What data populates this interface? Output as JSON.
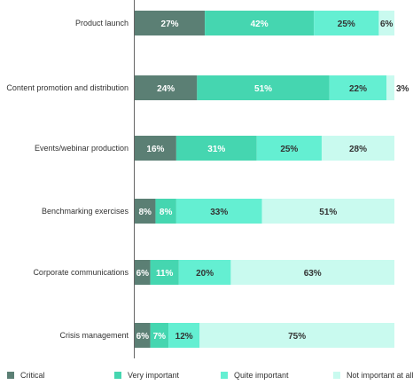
{
  "chart_data": {
    "type": "bar",
    "orientation": "horizontal",
    "stacked": true,
    "categories": [
      "Product launch",
      "Content promotion and distribution",
      "Events/webinar production",
      "Benchmarking exercises",
      "Corporate communications",
      "Crisis management"
    ],
    "series": [
      {
        "name": "Critical",
        "color": "#5b7f74",
        "label_color": "#ffffff",
        "values": [
          27,
          24,
          16,
          8,
          6,
          6
        ],
        "labels": [
          "27%",
          "24%",
          "16%",
          "8%",
          "6%",
          "6%"
        ]
      },
      {
        "name": "Very important",
        "color": "#45d6b0",
        "label_color": "#ffffff",
        "values": [
          42,
          51,
          31,
          8,
          11,
          7
        ],
        "labels": [
          "42%",
          "51%",
          "31%",
          "8%",
          "11%",
          "7%"
        ]
      },
      {
        "name": "Quite important",
        "color": "#64efd2",
        "label_color": "#333333",
        "values": [
          25,
          22,
          25,
          33,
          20,
          12
        ],
        "labels": [
          "25%",
          "22%",
          "25%",
          "33%",
          "20%",
          "12%"
        ]
      },
      {
        "name": "Not important at all",
        "color": "#c9faef",
        "label_color": "#333333",
        "values": [
          6,
          3,
          28,
          51,
          63,
          75
        ],
        "labels": [
          "6%",
          "3%",
          "28%",
          "51%",
          "63%",
          "75%"
        ]
      }
    ],
    "xlim": [
      0,
      100
    ],
    "grid": false,
    "legend_position": "bottom"
  }
}
